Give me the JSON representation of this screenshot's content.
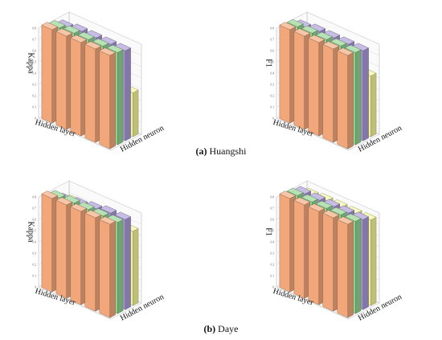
{
  "captions": {
    "a_letter": "(a)",
    "a_text": " Huangshi",
    "b_letter": "(b)",
    "b_text": " Daye"
  },
  "colors": {
    "orange": "#f2a77b",
    "green": "#8fd38f",
    "purple": "#a898d6",
    "yellow": "#f4f59a"
  },
  "chart_data": [
    {
      "type": "bar3d",
      "panel": "a",
      "ylabel": "Kappa",
      "xlabel": "Hidden layer",
      "zlabel": "Hidden neuron",
      "yticks": [
        "0",
        "0.1",
        "0.2",
        "0.3",
        "0.4",
        "0.5",
        "0.6",
        "0.7",
        "0.8"
      ],
      "ylim": [
        0,
        0.8
      ],
      "series": [
        {
          "color": "orange",
          "values": [
            0.83,
            0.83,
            0.83,
            0.83,
            0.83
          ]
        },
        {
          "color": "green",
          "values": [
            0.81,
            0.82,
            0.82,
            0.82,
            0.82
          ]
        },
        {
          "color": "purple",
          "values": [
            0.78,
            0.8,
            0.8,
            0.8,
            0.8
          ]
        },
        {
          "color": "yellow",
          "values": [
            0.4,
            0.41,
            0.4,
            0.4,
            0.39
          ]
        }
      ]
    },
    {
      "type": "bar3d",
      "panel": "a",
      "ylabel": "F1",
      "xlabel": "Hidden layer",
      "zlabel": "Hidden neuron",
      "yticks": [
        "0",
        "0.1",
        "0.2",
        "0.3",
        "0.4",
        "0.5",
        "0.6",
        "0.7",
        "0.8"
      ],
      "ylim": [
        0,
        0.8
      ],
      "series": [
        {
          "color": "orange",
          "values": [
            0.83,
            0.83,
            0.83,
            0.83,
            0.83
          ]
        },
        {
          "color": "green",
          "values": [
            0.82,
            0.82,
            0.82,
            0.82,
            0.82
          ]
        },
        {
          "color": "purple",
          "values": [
            0.78,
            0.8,
            0.8,
            0.8,
            0.8
          ]
        },
        {
          "color": "yellow",
          "values": [
            0.48,
            0.49,
            0.52,
            0.53,
            0.54
          ]
        }
      ]
    },
    {
      "type": "bar3d",
      "panel": "b",
      "ylabel": "Kappa",
      "xlabel": "Hidden layer",
      "zlabel": "Hidden neuron",
      "yticks": [
        "0",
        "0.1",
        "0.2",
        "0.3",
        "0.4",
        "0.5",
        "0.6",
        "0.7",
        "0.8"
      ],
      "ylim": [
        0,
        0.8
      ],
      "series": [
        {
          "color": "orange",
          "values": [
            0.83,
            0.83,
            0.83,
            0.83,
            0.83
          ]
        },
        {
          "color": "green",
          "values": [
            0.8,
            0.81,
            0.81,
            0.81,
            0.81
          ]
        },
        {
          "color": "purple",
          "values": [
            0.74,
            0.76,
            0.78,
            0.8,
            0.8
          ]
        },
        {
          "color": "yellow",
          "values": [
            0.69,
            0.68,
            0.67,
            0.66,
            0.66
          ]
        }
      ]
    },
    {
      "type": "bar3d",
      "panel": "b",
      "ylabel": "F1",
      "xlabel": "Hidden layer",
      "zlabel": "Hidden neuron",
      "yticks": [
        "0",
        "0.1",
        "0.2",
        "0.3",
        "0.4",
        "0.5",
        "0.6",
        "0.7",
        "0.8"
      ],
      "ylim": [
        0,
        0.8
      ],
      "series": [
        {
          "color": "orange",
          "values": [
            0.83,
            0.83,
            0.83,
            0.83,
            0.83
          ]
        },
        {
          "color": "green",
          "values": [
            0.82,
            0.82,
            0.82,
            0.82,
            0.82
          ]
        },
        {
          "color": "purple",
          "values": [
            0.8,
            0.8,
            0.8,
            0.8,
            0.8
          ]
        },
        {
          "color": "yellow",
          "values": [
            0.75,
            0.76,
            0.76,
            0.76,
            0.76
          ]
        }
      ]
    }
  ]
}
